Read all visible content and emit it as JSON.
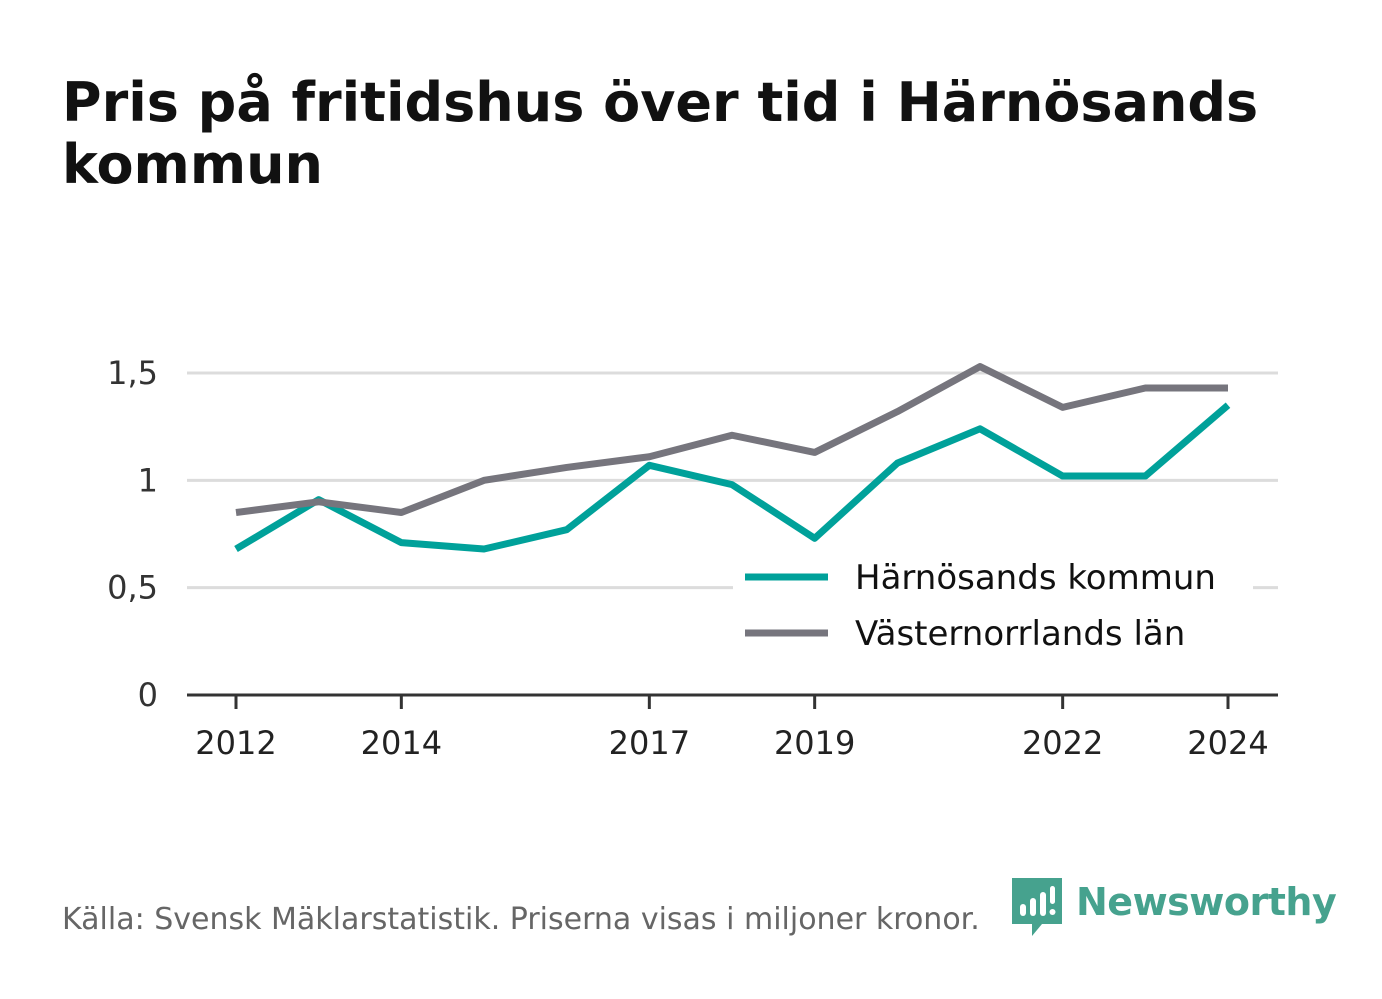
{
  "title": "Pris på fritidshus över tid i Härnösands kommun",
  "source": "Källa: Svensk Mäklarstatistik. Priserna visas i miljoner kronor.",
  "brand": {
    "name": "Newsworthy",
    "icon": "newsworthy-logo-icon",
    "color": "#46a28e"
  },
  "chart_data": {
    "type": "line",
    "title": "Pris på fritidshus över tid i Härnösands kommun",
    "x": [
      2012,
      2013,
      2014,
      2015,
      2016,
      2017,
      2018,
      2019,
      2020,
      2021,
      2022,
      2023,
      2024
    ],
    "x_ticks": [
      2012,
      2014,
      2017,
      2019,
      2022,
      2024
    ],
    "y_ticks": [
      0,
      0.5,
      1,
      1.5
    ],
    "y_tick_labels": [
      "0",
      "0,5",
      "1",
      "1,5"
    ],
    "ylim": [
      0,
      1.5
    ],
    "xlabel": "",
    "ylabel": "",
    "grid": true,
    "legend_position": "bottom-right",
    "series": [
      {
        "name": "Härnösands kommun",
        "color": "#00a19a",
        "values": [
          0.68,
          0.91,
          0.71,
          0.68,
          0.77,
          1.07,
          0.98,
          0.73,
          1.08,
          1.24,
          1.02,
          1.02,
          1.35
        ]
      },
      {
        "name": "Västernorrlands län",
        "color": "#76757d",
        "values": [
          0.85,
          0.9,
          0.85,
          1.0,
          1.06,
          1.11,
          1.21,
          1.13,
          1.32,
          1.53,
          1.34,
          1.43,
          1.43
        ]
      }
    ]
  }
}
